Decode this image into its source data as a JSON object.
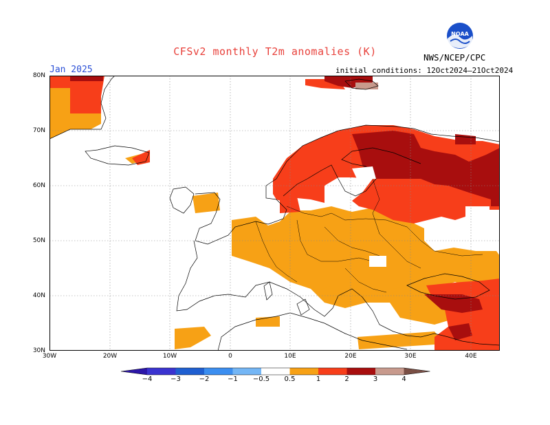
{
  "title": "CFSv2 monthly T2m anomalies (K)",
  "month_label": "Jan 2025",
  "initial_conditions": "initial conditions: 12Oct2024–21Oct2024",
  "agency": "NWS/NCEP/CPC",
  "logo_text": "NOAA",
  "lat_labels": [
    "80N",
    "70N",
    "60N",
    "50N",
    "40N",
    "30N"
  ],
  "lon_labels": [
    "30W",
    "20W",
    "10W",
    "0",
    "10E",
    "20E",
    "30E",
    "40E"
  ],
  "colorbar": {
    "ticks": [
      "−4",
      "−3",
      "−2",
      "−1",
      "−0.5",
      "0.5",
      "1",
      "2",
      "3",
      "4"
    ],
    "colors": [
      "#2c16a8",
      "#3a33d0",
      "#1f5fd1",
      "#3b8ef0",
      "#74b6f5",
      "#ffffff",
      "#f7a115",
      "#f73e1a",
      "#a80e0e",
      "#c89a8d",
      "#7a4f45"
    ]
  },
  "colors": {
    "title": "#e8403a",
    "month": "#2a4fd6",
    "gray": "#b0b0b0"
  }
}
